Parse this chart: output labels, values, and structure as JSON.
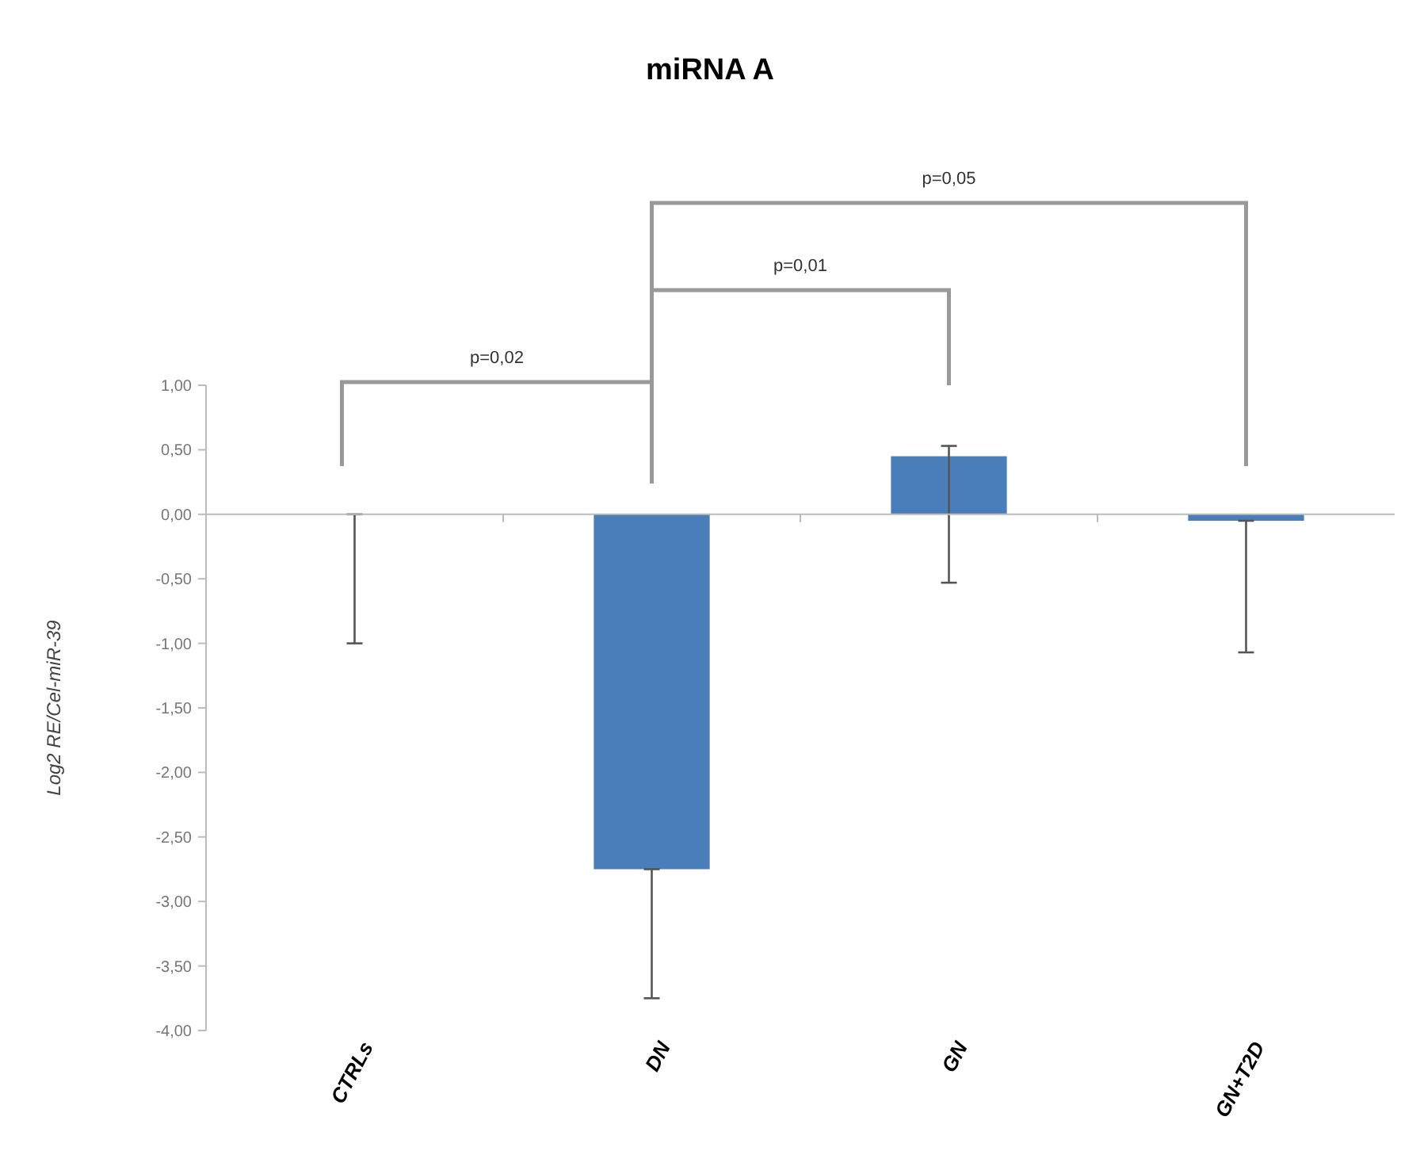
{
  "chart_data": {
    "type": "bar",
    "title": "miRNA A",
    "ylabel": "Log2 RE/Cel-miR-39",
    "categories": [
      "CTRLs",
      "DN",
      "GN",
      "GN+T2D"
    ],
    "values": [
      0,
      -2.75,
      0.45,
      -0.05
    ],
    "errors": [
      [
        -1.0,
        0
      ],
      [
        -3.75,
        -2.75
      ],
      [
        -0.53,
        0.53
      ],
      [
        -1.07,
        -0.05
      ]
    ],
    "color": "#4a7ebb",
    "ylim": [
      -4,
      1
    ],
    "yticks": [
      {
        "value": -4,
        "label": "-4,00"
      },
      {
        "value": -3.5,
        "label": "-3,50"
      },
      {
        "value": -3,
        "label": "-3,00"
      },
      {
        "value": -2.5,
        "label": "-2,50"
      },
      {
        "value": -2,
        "label": "-2,00"
      },
      {
        "value": -1.5,
        "label": "-1,50"
      },
      {
        "value": -1,
        "label": "-1,00"
      },
      {
        "value": -0.5,
        "label": "-0,50"
      },
      {
        "value": 0,
        "label": "0,00"
      },
      {
        "value": 0.5,
        "label": "0,50"
      },
      {
        "value": 1,
        "label": "1,00"
      }
    ],
    "annotations": [
      "p=0,02",
      "p=0,01",
      "p=0,05"
    ],
    "legend": false
  }
}
